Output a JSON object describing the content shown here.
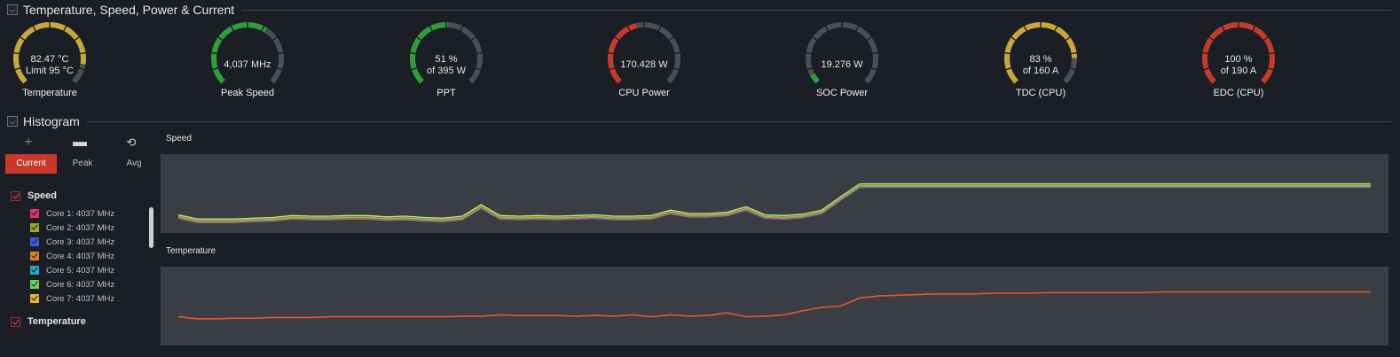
{
  "sections": {
    "gauges_title": "Temperature, Speed, Power & Current",
    "histogram_title": "Histogram"
  },
  "gauges": [
    {
      "id": "temperature",
      "line1": "82.47 °C",
      "line2": "Limit 95 °C",
      "label": "Temperature",
      "fraction": 0.868,
      "color": "#c9a83a"
    },
    {
      "id": "peak-speed",
      "line1": "4,037  MHz",
      "line2": "",
      "label": "Peak Speed",
      "fraction": 0.62,
      "color": "#2f9e3a"
    },
    {
      "id": "ppt",
      "line1": "51 %",
      "line2": "of 395 W",
      "label": "PPT",
      "fraction": 0.51,
      "color": "#2f9e3a"
    },
    {
      "id": "cpu-power",
      "line1": "170.428 W",
      "line2": "",
      "label": "CPU Power",
      "fraction": 0.45,
      "color": "#c8392c"
    },
    {
      "id": "soc-power",
      "line1": "19.276 W",
      "line2": "",
      "label": "SOC Power",
      "fraction": 0.06,
      "color": "#2f9e3a"
    },
    {
      "id": "tdc",
      "line1": "83 %",
      "line2": "of 160 A",
      "label": "TDC (CPU)",
      "fraction": 0.83,
      "color": "#c9a83a"
    },
    {
      "id": "edc",
      "line1": "100 %",
      "line2": "of 190 A",
      "label": "EDC (CPU)",
      "fraction": 1.0,
      "color": "#c8392c"
    }
  ],
  "toolbar": {
    "add": "+",
    "remove": "▬",
    "reset": "⟲"
  },
  "tabs": [
    "Current",
    "Peak",
    "Avg"
  ],
  "sidebar": {
    "speed_group": "Speed",
    "temperature_group": "Temperature",
    "cores": [
      {
        "label": "Core 1: 4037 MHz",
        "color": "#d6336c"
      },
      {
        "label": "Core 2: 4037 MHz",
        "color": "#9aa82a"
      },
      {
        "label": "Core 3: 4037 MHz",
        "color": "#3b5bdb"
      },
      {
        "label": "Core 4: 4037 MHz",
        "color": "#d9822b"
      },
      {
        "label": "Core 5: 4037 MHz",
        "color": "#22a7c7"
      },
      {
        "label": "Core 6: 4037 MHz",
        "color": "#6fcf5a"
      },
      {
        "label": "Core 7: 4037 MHz",
        "color": "#e0b43a"
      }
    ]
  },
  "chart_data": [
    {
      "type": "line",
      "title": "Speed",
      "series_colors": [
        "#d6336c",
        "#9aa82a",
        "#3b5bdb",
        "#d9822b",
        "#22a7c7",
        "#6fcf5a",
        "#e0b43a",
        "#e8562a",
        "#1a8f5c",
        "#c7e86a"
      ],
      "y": [
        0.18,
        0.12,
        0.12,
        0.12,
        0.13,
        0.14,
        0.17,
        0.16,
        0.16,
        0.17,
        0.17,
        0.15,
        0.16,
        0.14,
        0.13,
        0.16,
        0.33,
        0.17,
        0.16,
        0.17,
        0.16,
        0.17,
        0.18,
        0.16,
        0.16,
        0.17,
        0.25,
        0.2,
        0.2,
        0.22,
        0.3,
        0.18,
        0.17,
        0.19,
        0.25,
        0.45,
        0.64,
        0.64,
        0.64,
        0.64,
        0.64,
        0.64,
        0.64,
        0.64,
        0.64,
        0.64,
        0.64,
        0.64,
        0.64,
        0.64,
        0.64,
        0.64,
        0.64,
        0.64,
        0.64,
        0.64,
        0.64,
        0.64,
        0.64,
        0.64,
        0.64,
        0.64,
        0.64,
        0.64
      ]
    },
    {
      "type": "line",
      "title": "Temperature",
      "series_colors": [
        "#e8562a"
      ],
      "y": [
        0.36,
        0.33,
        0.33,
        0.34,
        0.34,
        0.35,
        0.35,
        0.35,
        0.36,
        0.36,
        0.36,
        0.36,
        0.36,
        0.36,
        0.36,
        0.37,
        0.37,
        0.39,
        0.38,
        0.38,
        0.38,
        0.37,
        0.38,
        0.37,
        0.39,
        0.36,
        0.39,
        0.37,
        0.38,
        0.42,
        0.36,
        0.37,
        0.39,
        0.45,
        0.5,
        0.52,
        0.64,
        0.67,
        0.68,
        0.69,
        0.7,
        0.7,
        0.7,
        0.71,
        0.71,
        0.71,
        0.72,
        0.72,
        0.72,
        0.72,
        0.72,
        0.72,
        0.73,
        0.73,
        0.73,
        0.73,
        0.73,
        0.73,
        0.73,
        0.73,
        0.73,
        0.73,
        0.73,
        0.73
      ]
    }
  ]
}
